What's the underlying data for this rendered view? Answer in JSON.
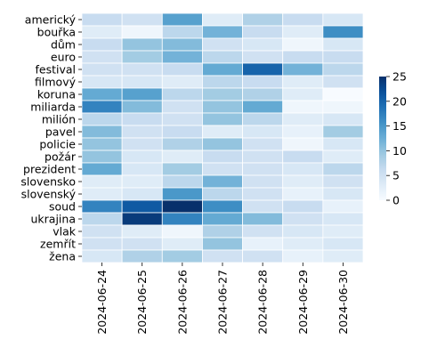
{
  "chart_data": {
    "type": "heatmap",
    "title": "",
    "xlabel": "",
    "ylabel": "",
    "x": [
      "2024-06-24",
      "2024-06-25",
      "2024-06-26",
      "2024-06-27",
      "2024-06-28",
      "2024-06-29",
      "2024-06-30"
    ],
    "y": [
      "americký",
      "bouřka",
      "dům",
      "euro",
      "festival",
      "filmový",
      "koruna",
      "miliarda",
      "milión",
      "pavel",
      "policie",
      "požár",
      "prezident",
      "slovensko",
      "slovenský",
      "soud",
      "ukrajina",
      "vlak",
      "zemřít",
      "žena"
    ],
    "values": [
      [
        6,
        5,
        14,
        3,
        8,
        6,
        4
      ],
      [
        3,
        1,
        7,
        12,
        6,
        3,
        16
      ],
      [
        6,
        10,
        11,
        5,
        4,
        1,
        4
      ],
      [
        5,
        9,
        12,
        7,
        5,
        6,
        6
      ],
      [
        5,
        5,
        6,
        13,
        20,
        12,
        7
      ],
      [
        4,
        4,
        3,
        7,
        6,
        3,
        5
      ],
      [
        13,
        14,
        7,
        9,
        8,
        3,
        0
      ],
      [
        17,
        11,
        5,
        10,
        13,
        1,
        1
      ],
      [
        7,
        6,
        5,
        10,
        7,
        3,
        4
      ],
      [
        11,
        5,
        6,
        3,
        4,
        2,
        9
      ],
      [
        10,
        5,
        8,
        10,
        5,
        1,
        4
      ],
      [
        10,
        4,
        3,
        6,
        5,
        6,
        3
      ],
      [
        13,
        4,
        9,
        5,
        5,
        4,
        7
      ],
      [
        3,
        3,
        7,
        12,
        5,
        3,
        5
      ],
      [
        3,
        4,
        15,
        7,
        5,
        2,
        4
      ],
      [
        17,
        21,
        25,
        16,
        5,
        6,
        2
      ],
      [
        7,
        24,
        17,
        13,
        11,
        5,
        4
      ],
      [
        5,
        3,
        1,
        8,
        5,
        4,
        3
      ],
      [
        5,
        5,
        3,
        10,
        2,
        3,
        4
      ],
      [
        4,
        8,
        9,
        5,
        5,
        2,
        3
      ]
    ],
    "colorbar": {
      "min": 0,
      "max": 25,
      "ticks": [
        0,
        5,
        10,
        15,
        20,
        25
      ]
    },
    "colormap": "Blues",
    "grid": true,
    "legend": "colorbar-right"
  }
}
